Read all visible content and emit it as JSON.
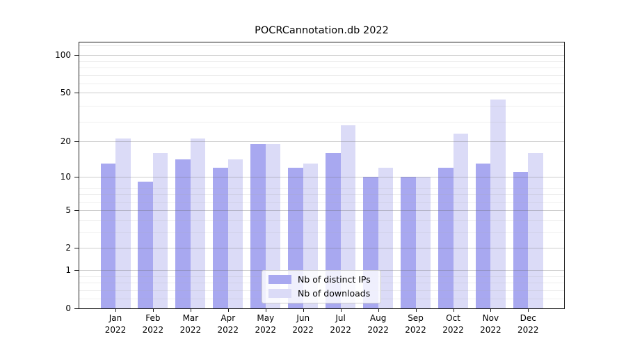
{
  "chart_data": {
    "type": "bar",
    "title": "POCRCannotation.db 2022",
    "categories": [
      "Jan",
      "Feb",
      "Mar",
      "Apr",
      "May",
      "Jun",
      "Jul",
      "Aug",
      "Sep",
      "Oct",
      "Nov",
      "Dec"
    ],
    "year": "2022",
    "series": [
      {
        "name": "Nb of distinct IPs",
        "color": "#A8A8F0",
        "values": [
          13,
          9,
          14,
          12,
          19,
          12,
          16,
          10,
          10,
          12,
          13,
          11
        ]
      },
      {
        "name": "Nb of downloads",
        "color": "#DBDBF7",
        "values": [
          21,
          16,
          21,
          14,
          19,
          13,
          27,
          12,
          10,
          23,
          44,
          16
        ]
      }
    ],
    "yscale": "log1p",
    "yticks": [
      0,
      1,
      2,
      5,
      10,
      20,
      50,
      100
    ],
    "ylim": [
      0,
      127
    ],
    "xlabel": "",
    "ylabel": "",
    "grid": true,
    "legend_position": "lower-center",
    "background_color": "#ffffff",
    "axis_color": "#1a1a1a",
    "grid_major_color": "#d9d9d9",
    "grid_minor_color": "#efefef"
  }
}
